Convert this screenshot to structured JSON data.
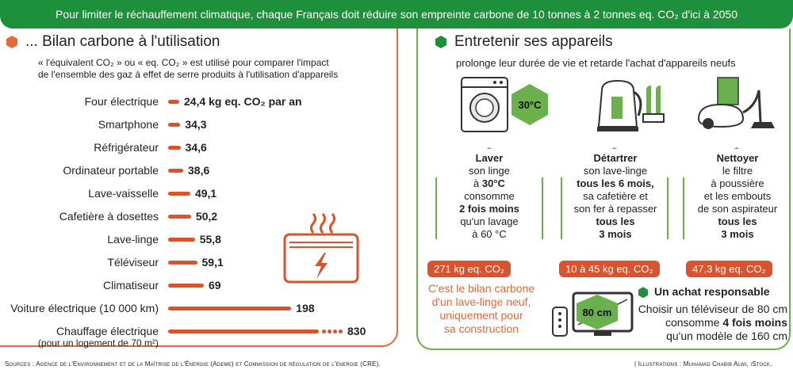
{
  "banner": "Pour limiter le réchauffement climatique, chaque Français doit réduire son empreinte carbone de 10 tonnes à 2 tonnes eq. CO₂ d'ici à 2050",
  "left": {
    "title": "... Bilan carbone à l'utilisation",
    "subtitle_line1": "« l'équivalent CO₂ » ou « eq. CO₂ » est utilisé pour comparer l'impact",
    "subtitle_line2": "de l'ensemble des gaz à effet de serre produits à l'utilisation d'appareils"
  },
  "chart_data": {
    "type": "bar",
    "orientation": "horizontal",
    "unit": "kg eq. CO₂ par an",
    "categories": [
      "Four électrique",
      "Smartphone",
      "Réfrigérateur",
      "Ordinateur portable",
      "Lave-vaisselle",
      "Cafetière à dosettes",
      "Lave-linge",
      "Téléviseur",
      "Climatiseur",
      "Voiture électrique (10 000 km)",
      "Chauffage électrique"
    ],
    "category_sublabels": [
      "",
      "",
      "",
      "",
      "",
      "",
      "",
      "",
      "",
      "",
      "(pour un logement de 70 m²)"
    ],
    "values": [
      24.4,
      34.3,
      34.6,
      38.6,
      49.1,
      50.2,
      55.8,
      59.1,
      69,
      198,
      830
    ],
    "value_labels": [
      "24,4 kg eq. CO₂ par an",
      "34,3",
      "34,6",
      "38,6",
      "49,1",
      "50,2",
      "55,8",
      "59,1",
      "69",
      "198",
      "830"
    ],
    "bar_color": "#d9532c",
    "last_bar_truncated": true
  },
  "right": {
    "title": "Entretenir ses appareils",
    "subtitle": "prolonge leur durée de vie et retarde l'achat d'appareils neufs",
    "thermo_label": "30°C",
    "tips": [
      {
        "lines": [
          [
            "Laver",
            true
          ],
          [
            "son linge",
            false
          ],
          [
            "à ",
            false,
            "30°C",
            true
          ],
          [
            "consomme",
            false
          ],
          [
            "2 fois moins",
            true
          ],
          [
            "qu'un lavage",
            false
          ],
          [
            "à 60 °C",
            false
          ]
        ],
        "badge": "271 kg eq. CO₂"
      },
      {
        "lines": [
          [
            "Détartrer",
            true
          ],
          [
            "son lave-linge",
            false
          ],
          [
            "tous les 6 mois,",
            true
          ],
          [
            "sa cafetière et",
            false
          ],
          [
            "son fer à repasser",
            false
          ],
          [
            "tous les",
            true
          ],
          [
            "3 mois",
            true
          ]
        ],
        "badge": "10 à 45 kg  eq. CO₂"
      },
      {
        "lines": [
          [
            "Nettoyer",
            true
          ],
          [
            "le filtre",
            false
          ],
          [
            "à poussière",
            false
          ],
          [
            "et les embouts",
            false
          ],
          [
            "de son aspirateur",
            false
          ],
          [
            "tous les",
            true
          ],
          [
            "3 mois",
            true
          ]
        ],
        "badge": "47,3 kg eq. CO₂"
      }
    ],
    "orange_note": [
      "C'est le bilan carbone",
      "d'un lave-linge neuf,",
      "uniquement pour",
      "sa construction"
    ],
    "tv_label": "80 cm",
    "responsible_title": "Un achat responsable",
    "responsible_line1": "Choisir un téléviseur de 80 cm",
    "responsible_line2_pre": "consomme ",
    "responsible_line2_bold": "4 fois moins",
    "responsible_line3": "qu'un modèle de 160 cm",
    "accent_green": "#6ab04c",
    "accent_orange": "#e46a3a"
  },
  "footer": {
    "sources": "Sources : Agence de l'Environnement et de la Maîtrise de l'Énergie (Ademe) et Commission de régulation de l'énergie (CRE).",
    "illustrations": "| Illustrations : Muhamad Chabib Alwi, iStock."
  }
}
